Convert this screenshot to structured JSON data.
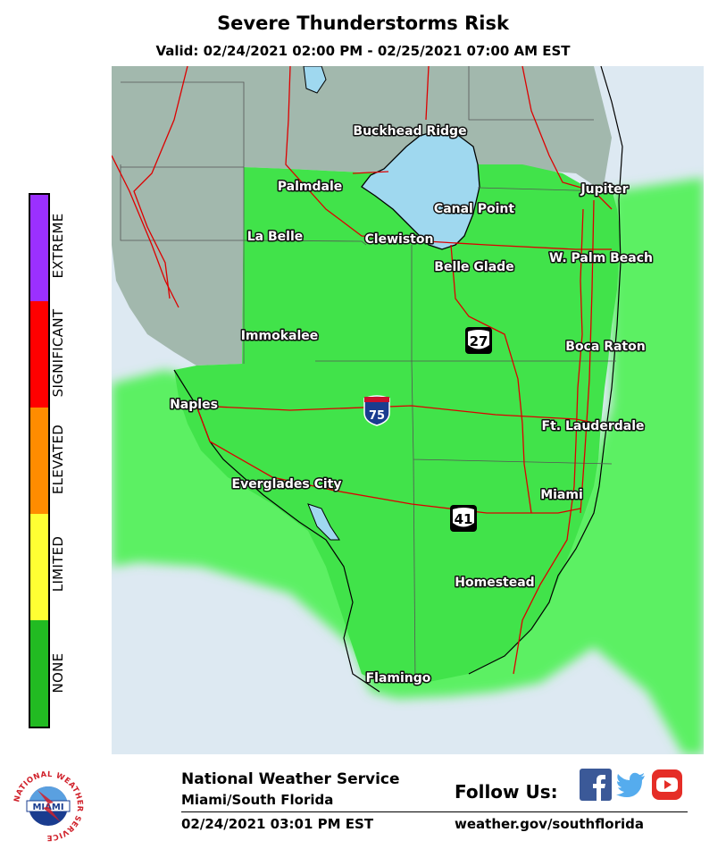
{
  "header": {
    "title": "Severe Thunderstorms Risk",
    "valid": "Valid: 02/24/2021 02:00 PM - 02/25/2021 07:00 AM EST"
  },
  "legend": [
    {
      "label": "EXTREME",
      "color": "#9b30ff"
    },
    {
      "label": "SIGNIFICANT",
      "color": "#ff0000"
    },
    {
      "label": "ELEVATED",
      "color": "#ff8c00"
    },
    {
      "label": "LIMITED",
      "color": "#ffff33"
    },
    {
      "label": "NONE",
      "color": "#22bb22"
    }
  ],
  "map": {
    "colors": {
      "land_none": "#41e34a",
      "offshore_none": "#5bf063",
      "outside": "#a2b8ad",
      "water": "#dde9f2",
      "lake": "#9fd8ef",
      "roads": "#dd0000"
    },
    "cities": [
      {
        "name": "Buckhead Ridge"
      },
      {
        "name": "Palmdale"
      },
      {
        "name": "Jupiter"
      },
      {
        "name": "Canal Point"
      },
      {
        "name": "La Belle"
      },
      {
        "name": "Clewiston"
      },
      {
        "name": "W. Palm Beach"
      },
      {
        "name": "Belle Glade"
      },
      {
        "name": "Immokalee"
      },
      {
        "name": "Boca Raton"
      },
      {
        "name": "Naples"
      },
      {
        "name": "Ft. Lauderdale"
      },
      {
        "name": "Everglades City"
      },
      {
        "name": "Miami"
      },
      {
        "name": "Homestead"
      },
      {
        "name": "Flamingo"
      }
    ],
    "shields": {
      "i75": "75",
      "us27": "27",
      "us41": "41"
    }
  },
  "footer": {
    "agency": "National Weather Service",
    "office": "Miami/South Florida",
    "issued": "02/24/2021 03:01 PM EST",
    "follow": "Follow Us:",
    "url": "weather.gov/southflorida",
    "logo_text": "MIAMI",
    "logo_ring": "NATIONAL WEATHER SERVICE"
  }
}
